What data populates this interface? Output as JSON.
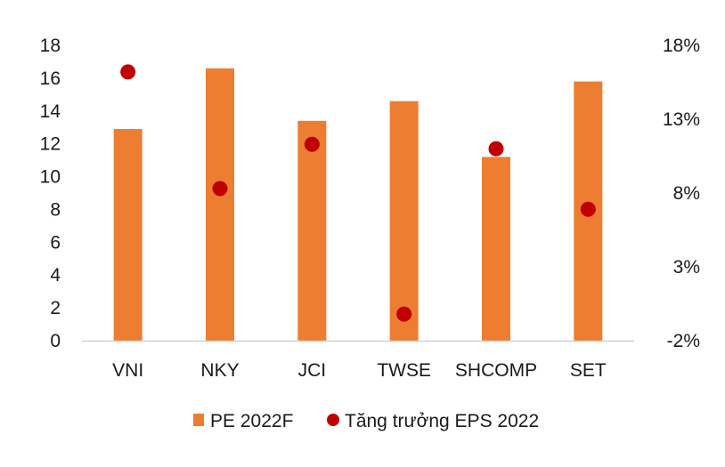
{
  "chart_data": {
    "type": "bar",
    "title": "",
    "xlabel": "",
    "ylabel": "",
    "categories": [
      "VNI",
      "NKY",
      "JCI",
      "TWSE",
      "SHCOMP",
      "SET"
    ],
    "series": [
      {
        "name": "PE 2022F",
        "type": "bar",
        "axis": "left",
        "color": "#ED7D31",
        "values": [
          12.9,
          16.6,
          13.4,
          14.6,
          11.2,
          15.8
        ]
      },
      {
        "name": "Tăng trưởng EPS 2022",
        "type": "scatter",
        "axis": "right",
        "color": "#C00000",
        "values": [
          16.2,
          8.3,
          11.3,
          -0.2,
          11.0,
          6.9
        ]
      }
    ],
    "y_left": {
      "min": 0,
      "max": 18,
      "ticks": [
        "0",
        "2",
        "4",
        "6",
        "8",
        "10",
        "12",
        "14",
        "16",
        "18"
      ]
    },
    "y_right": {
      "min": -2,
      "max": 18,
      "ticks": [
        "-2%",
        "3%",
        "8%",
        "13%",
        "18%"
      ]
    },
    "grid": false,
    "legend_position": "bottom-center"
  }
}
